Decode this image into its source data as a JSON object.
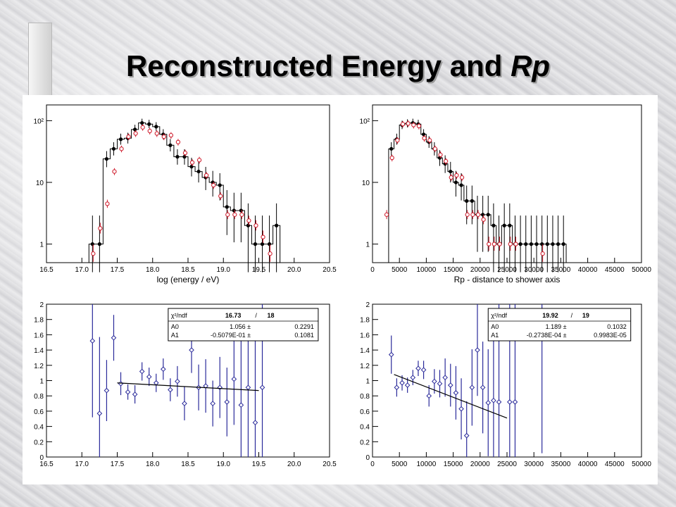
{
  "slide": {
    "title_main": "Reconstructed Energy and ",
    "title_italic": "Rp"
  },
  "colors": {
    "mc": "#d02030",
    "data": "#000000",
    "ratio": "#2a2a9a",
    "fit": "#000000"
  },
  "chart_data": [
    {
      "id": "energy-hist",
      "type": "line",
      "xlabel": "log (energy / eV)",
      "ylabel": "",
      "xlim": [
        16.5,
        20.5
      ],
      "ylim": [
        0.5,
        180
      ],
      "yscale": "log",
      "xticks": [
        16.5,
        17.0,
        17.5,
        18.0,
        18.5,
        19.0,
        19.5,
        20.0,
        20.5
      ],
      "xticklabels": [
        "16.5",
        "17.0",
        "17.5",
        "18.0",
        "18.5",
        "19.0",
        "19.5",
        "20.0",
        "20.5"
      ],
      "yticks": [
        1,
        10,
        100
      ],
      "yticklabels": [
        "1",
        "10",
        "10²"
      ],
      "bin_edges": [
        17.1,
        17.2,
        17.3,
        17.4,
        17.5,
        17.6,
        17.7,
        17.8,
        17.9,
        18.0,
        18.1,
        18.2,
        18.3,
        18.4,
        18.5,
        18.6,
        18.7,
        18.8,
        18.9,
        19.0,
        19.1,
        19.2,
        19.3,
        19.4,
        19.5,
        19.6,
        19.7,
        19.8
      ],
      "series": [
        {
          "x": [
            17.15,
            17.25,
            17.35,
            17.45,
            17.55,
            17.65,
            17.75,
            17.85,
            17.95,
            18.05,
            18.15,
            18.25,
            18.35,
            18.45,
            18.55,
            18.65,
            18.75,
            18.85,
            18.95,
            19.05,
            19.15,
            19.25,
            19.35,
            19.45,
            19.55,
            19.65,
            19.75
          ],
          "y": [
            1,
            1,
            24,
            35,
            50,
            52,
            72,
            92,
            88,
            80,
            60,
            40,
            26,
            26,
            18,
            15,
            12,
            10,
            9,
            4,
            3.5,
            3.5,
            2,
            1,
            1,
            1,
            2
          ]
        },
        {
          "x": [
            17.15,
            17.25,
            17.35,
            17.45,
            17.55,
            17.65,
            17.75,
            17.85,
            17.95,
            18.05,
            18.15,
            18.25,
            18.35,
            18.45,
            18.55,
            18.65,
            18.75,
            18.85,
            18.95,
            19.05,
            19.15,
            19.25,
            19.35,
            19.45,
            19.55,
            19.65
          ],
          "y": [
            0.7,
            1.8,
            4.5,
            15,
            35,
            55,
            62,
            78,
            68,
            62,
            55,
            58,
            45,
            30,
            21,
            23,
            13,
            9,
            6,
            3,
            3,
            3,
            2.4,
            2,
            1.3,
            0.7
          ]
        }
      ]
    },
    {
      "id": "rp-hist",
      "type": "line",
      "xlabel": "Rp - distance to shower axis",
      "ylabel": "",
      "xlim": [
        0,
        50000
      ],
      "ylim": [
        0.5,
        180
      ],
      "yscale": "log",
      "xticks": [
        0,
        5000,
        10000,
        15000,
        20000,
        25000,
        30000,
        35000,
        40000,
        45000,
        50000
      ],
      "xticklabels": [
        "0",
        "5000",
        "10000",
        "15000",
        "20000",
        "25000",
        "30000",
        "35000",
        "40000",
        "45000",
        "50000"
      ],
      "yticks": [
        1,
        10,
        100
      ],
      "yticklabels": [
        "1",
        "10",
        "10²"
      ],
      "bin_edges": [
        3000,
        4000,
        5000,
        6000,
        7000,
        8000,
        9000,
        10000,
        11000,
        12000,
        13000,
        14000,
        15000,
        16000,
        17000,
        18000,
        19000,
        20000,
        21000,
        22000,
        23000,
        24000,
        25000,
        26000,
        27000,
        28000,
        29000,
        30000,
        31000,
        32000,
        33000,
        34000,
        35000,
        36000
      ],
      "series": [
        {
          "x": [
            3500,
            4500,
            5500,
            6500,
            7500,
            8500,
            9500,
            10500,
            11500,
            12500,
            13500,
            14500,
            15500,
            16500,
            17500,
            18500,
            19500,
            20500,
            21500,
            22500,
            23500,
            24500,
            25500,
            26500,
            27500,
            28500,
            29500,
            30500,
            31500,
            32500,
            33500,
            34500,
            35500
          ],
          "y": [
            35,
            50,
            85,
            90,
            92,
            88,
            60,
            45,
            35,
            25,
            20,
            15,
            10,
            9,
            5,
            5,
            3,
            3,
            3,
            2,
            1,
            2,
            2,
            1,
            1,
            1,
            1,
            1,
            1,
            1,
            1,
            1,
            1
          ]
        },
        {
          "x": [
            2500,
            3500,
            4500,
            5500,
            6500,
            7500,
            8500,
            9500,
            10500,
            11500,
            12500,
            13500,
            14500,
            15500,
            16500,
            17500,
            18500,
            19500,
            20500,
            21500,
            22500,
            23500,
            25500,
            26500,
            31500
          ],
          "y": [
            3,
            25,
            48,
            88,
            90,
            85,
            82,
            52,
            48,
            35,
            28,
            22,
            12,
            13,
            12,
            3,
            3,
            3,
            2.5,
            1,
            1,
            1,
            1,
            1,
            0.7
          ]
        }
      ]
    },
    {
      "id": "energy-ratio",
      "type": "scatter",
      "xlabel": "",
      "xlim": [
        16.5,
        20.5
      ],
      "ylim": [
        0,
        2
      ],
      "xticks": [
        16.5,
        17.0,
        17.5,
        18.0,
        18.5,
        19.0,
        19.5,
        20.0,
        20.5
      ],
      "xticklabels": [
        "16.5",
        "17.0",
        "17.5",
        "18.0",
        "18.5",
        "19.0",
        "19.5",
        "20.0",
        "20.5"
      ],
      "yticks": [
        0,
        0.2,
        0.4,
        0.6,
        0.8,
        1,
        1.2,
        1.4,
        1.6,
        1.8,
        2
      ],
      "yticklabels": [
        "0",
        "0.2",
        "0.4",
        "0.6",
        "0.8",
        "1",
        "1.2",
        "1.4",
        "1.6",
        "1.8",
        "2"
      ],
      "points": {
        "x": [
          17.15,
          17.25,
          17.35,
          17.45,
          17.55,
          17.65,
          17.75,
          17.85,
          17.95,
          18.05,
          18.15,
          18.25,
          18.35,
          18.45,
          18.55,
          18.65,
          18.75,
          18.85,
          18.95,
          19.05,
          19.15,
          19.25,
          19.35,
          19.45,
          19.55
        ],
        "y": [
          1.52,
          0.57,
          0.87,
          1.56,
          0.96,
          0.85,
          0.82,
          1.12,
          1.05,
          0.97,
          1.15,
          0.88,
          0.99,
          0.7,
          1.4,
          0.91,
          0.93,
          0.7,
          0.91,
          0.72,
          1.02,
          0.68,
          0.91,
          0.45,
          0.91
        ],
        "err": [
          1.0,
          1.0,
          0.4,
          0.3,
          0.15,
          0.1,
          0.12,
          0.12,
          0.12,
          0.12,
          0.14,
          0.15,
          0.2,
          0.22,
          0.3,
          0.3,
          0.35,
          0.3,
          0.4,
          0.45,
          0.6,
          0.9,
          1.0,
          1.1,
          1.2
        ]
      },
      "fit_line": {
        "x": [
          17.5,
          19.5
        ],
        "y": [
          0.97,
          0.87
        ]
      },
      "stats": {
        "head1": "χ²/ndf",
        "head2": "16.73",
        "head3": "/",
        "head4": "18",
        "rows": [
          {
            "name": "A0",
            "value": "1.056 ±",
            "error": "0.2291"
          },
          {
            "name": "A1",
            "value": "-0.5079E-01 ±",
            "error": "0.1081"
          }
        ]
      }
    },
    {
      "id": "rp-ratio",
      "type": "scatter",
      "xlabel": "",
      "xlim": [
        0,
        50000
      ],
      "ylim": [
        0,
        2
      ],
      "xticks": [
        0,
        5000,
        10000,
        15000,
        20000,
        25000,
        30000,
        35000,
        40000,
        45000,
        50000
      ],
      "xticklabels": [
        "0",
        "5000",
        "10000",
        "15000",
        "20000",
        "25000",
        "30000",
        "35000",
        "40000",
        "45000",
        "50000"
      ],
      "yticks": [
        0,
        0.2,
        0.4,
        0.6,
        0.8,
        1,
        1.2,
        1.4,
        1.6,
        1.8,
        2
      ],
      "yticklabels": [
        "0",
        "0.2",
        "0.4",
        "0.6",
        "0.8",
        "1",
        "1.2",
        "1.4",
        "1.6",
        "1.8",
        "2"
      ],
      "points": {
        "x": [
          3500,
          4500,
          5500,
          6500,
          7500,
          8500,
          9500,
          10500,
          11500,
          12500,
          13500,
          14500,
          15500,
          16500,
          17500,
          18500,
          19500,
          20500,
          21500,
          22500,
          23500,
          25500,
          26500,
          31500
        ],
        "y": [
          1.34,
          0.91,
          0.97,
          0.94,
          1.04,
          1.16,
          1.14,
          0.8,
          0.99,
          0.96,
          1.04,
          0.94,
          0.84,
          0.63,
          0.28,
          0.91,
          1.4,
          0.91,
          0.71,
          0.74,
          0.72,
          0.72,
          0.72,
          1.55
        ],
        "err": [
          0.25,
          0.12,
          0.1,
          0.1,
          0.1,
          0.1,
          0.12,
          0.14,
          0.16,
          0.18,
          0.25,
          0.28,
          0.35,
          0.4,
          0.45,
          0.5,
          0.6,
          0.6,
          0.7,
          1.2,
          1.3,
          1.4,
          1.4,
          1.5
        ]
      },
      "fit_line": {
        "x": [
          4000,
          25000
        ],
        "y": [
          1.08,
          0.51
        ]
      },
      "stats": {
        "head1": "χ²/ndf",
        "head2": "19.92",
        "head3": "/",
        "head4": "19",
        "rows": [
          {
            "name": "A0",
            "value": "1.189 ±",
            "error": "0.1032"
          },
          {
            "name": "A1",
            "value": "-0.2738E-04 ±",
            "error": "0.9983E-05"
          }
        ]
      }
    }
  ]
}
